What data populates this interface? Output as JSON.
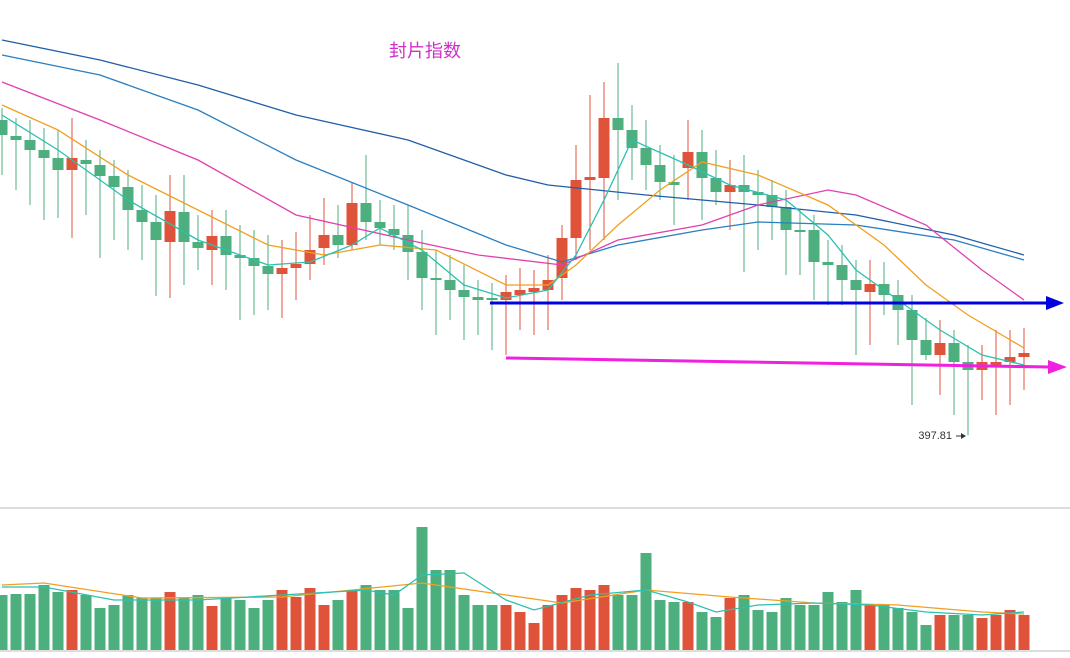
{
  "chart_data": {
    "type": "candlestick",
    "title": "封片指数",
    "up_color": "#e0533b",
    "down_color": "#4caf7d",
    "ylim": [
      333,
      833
    ],
    "open": [
      713,
      697,
      693,
      683,
      675,
      663,
      673,
      668,
      657,
      646,
      623,
      611,
      591,
      621,
      591,
      583,
      597,
      578,
      575,
      567,
      559,
      565,
      569,
      585,
      598,
      588,
      630,
      611,
      604,
      598,
      581,
      555,
      553,
      543,
      536,
      535,
      533,
      538,
      541,
      543,
      555,
      595,
      653,
      655,
      715,
      703,
      685,
      668,
      651,
      665,
      681,
      655,
      641,
      648,
      641,
      638,
      626,
      603,
      603,
      571,
      568,
      553,
      541,
      549,
      538,
      523,
      493,
      478,
      490,
      471,
      463,
      467,
      471,
      476
    ],
    "close": [
      698,
      693,
      683,
      675,
      663,
      675,
      669,
      657,
      646,
      623,
      611,
      593,
      622,
      591,
      585,
      597,
      578,
      575,
      567,
      559,
      565,
      569,
      583,
      598,
      588,
      630,
      611,
      605,
      598,
      581,
      555,
      553,
      543,
      536,
      533,
      533,
      541,
      543,
      545,
      553,
      595,
      653,
      656,
      715,
      703,
      685,
      668,
      651,
      648,
      681,
      655,
      641,
      648,
      641,
      638,
      626,
      603,
      601,
      571,
      568,
      553,
      543,
      549,
      538,
      523,
      493,
      478,
      490,
      471,
      463,
      471,
      471,
      476,
      480
    ],
    "high": [
      725,
      715,
      713,
      705,
      703,
      715,
      693,
      683,
      673,
      663,
      648,
      638,
      658,
      658,
      618,
      623,
      623,
      608,
      603,
      598,
      593,
      601,
      618,
      635,
      628,
      650,
      678,
      633,
      628,
      628,
      603,
      583,
      578,
      568,
      553,
      550,
      558,
      565,
      563,
      578,
      608,
      688,
      738,
      751,
      770,
      728,
      713,
      688,
      678,
      713,
      703,
      683,
      673,
      678,
      663,
      653,
      643,
      623,
      618,
      593,
      588,
      573,
      573,
      571,
      553,
      538,
      515,
      513,
      503,
      488,
      488,
      503,
      503,
      505
    ],
    "low": [
      658,
      643,
      628,
      613,
      615,
      595,
      618,
      575,
      593,
      583,
      573,
      537,
      535,
      548,
      563,
      548,
      543,
      513,
      518,
      523,
      515,
      533,
      553,
      568,
      575,
      583,
      593,
      588,
      583,
      553,
      523,
      498,
      513,
      493,
      498,
      483,
      478,
      503,
      498,
      503,
      533,
      573,
      583,
      593,
      633,
      653,
      643,
      633,
      608,
      633,
      613,
      628,
      603,
      561,
      583,
      593,
      558,
      558,
      533,
      528,
      528,
      478,
      488,
      518,
      488,
      428,
      473,
      438,
      418,
      397.81,
      433,
      418,
      428,
      443
    ],
    "ma_lines": [
      {
        "color": "#1f5fa8",
        "x": [
          0,
          7,
          14,
          21,
          29,
          36,
          39,
          46,
          54,
          61,
          68,
          73
        ],
        "values": [
          793,
          773,
          748,
          718,
          693,
          658,
          648,
          638,
          628,
          618,
          598,
          578
        ]
      },
      {
        "color": "#2a7fc0",
        "x": [
          0,
          7,
          14,
          21,
          29,
          36,
          40,
          44,
          50,
          54,
          61,
          68,
          73
        ],
        "values": [
          778,
          758,
          723,
          673,
          628,
          588,
          571,
          588,
          603,
          611,
          608,
          593,
          573
        ]
      },
      {
        "color": "#e040b0",
        "x": [
          0,
          7,
          14,
          21,
          29,
          34,
          40,
          44,
          50,
          54,
          59,
          61,
          66,
          70,
          73
        ],
        "values": [
          751,
          713,
          673,
          618,
          593,
          578,
          568,
          593,
          608,
          628,
          643,
          638,
          608,
          563,
          533
        ]
      },
      {
        "color": "#f0a020",
        "x": [
          0,
          4,
          9,
          14,
          19,
          23,
          27,
          31,
          36,
          39,
          41,
          44,
          47,
          50,
          54,
          59,
          63,
          66,
          69,
          73
        ],
        "values": [
          728,
          703,
          658,
          623,
          588,
          578,
          588,
          583,
          548,
          548,
          568,
          608,
          643,
          671,
          658,
          628,
          588,
          548,
          518,
          485
        ]
      },
      {
        "color": "#2cc0b0",
        "x": [
          0,
          4,
          9,
          14,
          19,
          22,
          25,
          27,
          30,
          33,
          36,
          39,
          41,
          43,
          45,
          49,
          52,
          56,
          59,
          61,
          64,
          67,
          70,
          73
        ],
        "values": [
          718,
          683,
          633,
          593,
          568,
          571,
          588,
          605,
          583,
          548,
          535,
          543,
          578,
          633,
          693,
          668,
          648,
          633,
          598,
          563,
          533,
          503,
          478,
          468
        ]
      }
    ],
    "volume": {
      "ylim": [
        0,
        135
      ],
      "values": [
        55,
        56,
        56,
        65,
        58,
        60,
        55,
        42,
        45,
        55,
        52,
        52,
        58,
        52,
        55,
        44,
        53,
        50,
        42,
        50,
        60,
        53,
        62,
        45,
        50,
        60,
        65,
        60,
        60,
        42,
        123,
        80,
        80,
        55,
        45,
        45,
        45,
        38,
        27,
        45,
        55,
        62,
        60,
        65,
        55,
        55,
        97,
        50,
        48,
        48,
        38,
        33,
        52,
        55,
        40,
        38,
        52,
        45,
        45,
        58,
        48,
        60,
        45,
        45,
        42,
        38,
        25,
        35,
        35,
        35,
        32,
        35,
        40,
        35
      ],
      "ma_lines": [
        {
          "color": "#f0a020",
          "x": [
            0,
            3,
            10,
            20,
            30,
            36,
            40,
            46,
            52,
            58,
            64,
            70,
            73
          ],
          "values": [
            65,
            67,
            52,
            53,
            67,
            55,
            47,
            60,
            53,
            47,
            45,
            38,
            36
          ]
        },
        {
          "color": "#2cc0b0",
          "x": [
            0,
            3,
            8,
            14,
            20,
            26,
            28,
            30,
            33,
            36,
            38,
            42,
            46,
            49,
            51,
            54,
            58,
            62,
            66,
            70,
            73
          ],
          "values": [
            63,
            63,
            50,
            50,
            55,
            60,
            55,
            75,
            77,
            50,
            40,
            55,
            60,
            48,
            38,
            45,
            47,
            45,
            38,
            35,
            38
          ]
        }
      ]
    }
  }
}
